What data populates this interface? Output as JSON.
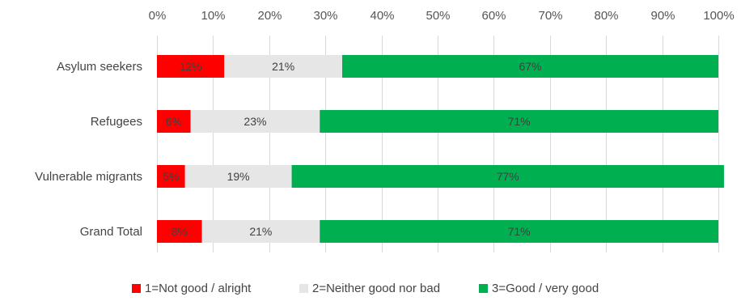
{
  "chart_data": {
    "type": "bar",
    "orientation": "horizontal",
    "stacked": true,
    "categories": [
      "Asylum seekers",
      "Refugees",
      "Vulnerable migrants",
      "Grand Total"
    ],
    "series": [
      {
        "name": "1=Not good / alright",
        "color": "#ff0000",
        "values": [
          12,
          6,
          5,
          8
        ],
        "labels": [
          "12%",
          "6%",
          "5%",
          "8%"
        ]
      },
      {
        "name": "2=Neither good nor bad",
        "color": "#e6e6e6",
        "values": [
          21,
          23,
          19,
          21
        ],
        "labels": [
          "21%",
          "23%",
          "19%",
          "21%"
        ]
      },
      {
        "name": "3=Good / very good",
        "color": "#00b050",
        "values": [
          67,
          71,
          77,
          71
        ],
        "labels": [
          "67%",
          "71%",
          "77%",
          "71%"
        ]
      }
    ],
    "xlim": [
      0,
      100
    ],
    "x_ticks": [
      "0%",
      "10%",
      "20%",
      "30%",
      "40%",
      "50%",
      "60%",
      "70%",
      "80%",
      "90%",
      "100%"
    ],
    "x_axis_position": "top",
    "grid": true,
    "legend_position": "bottom"
  }
}
